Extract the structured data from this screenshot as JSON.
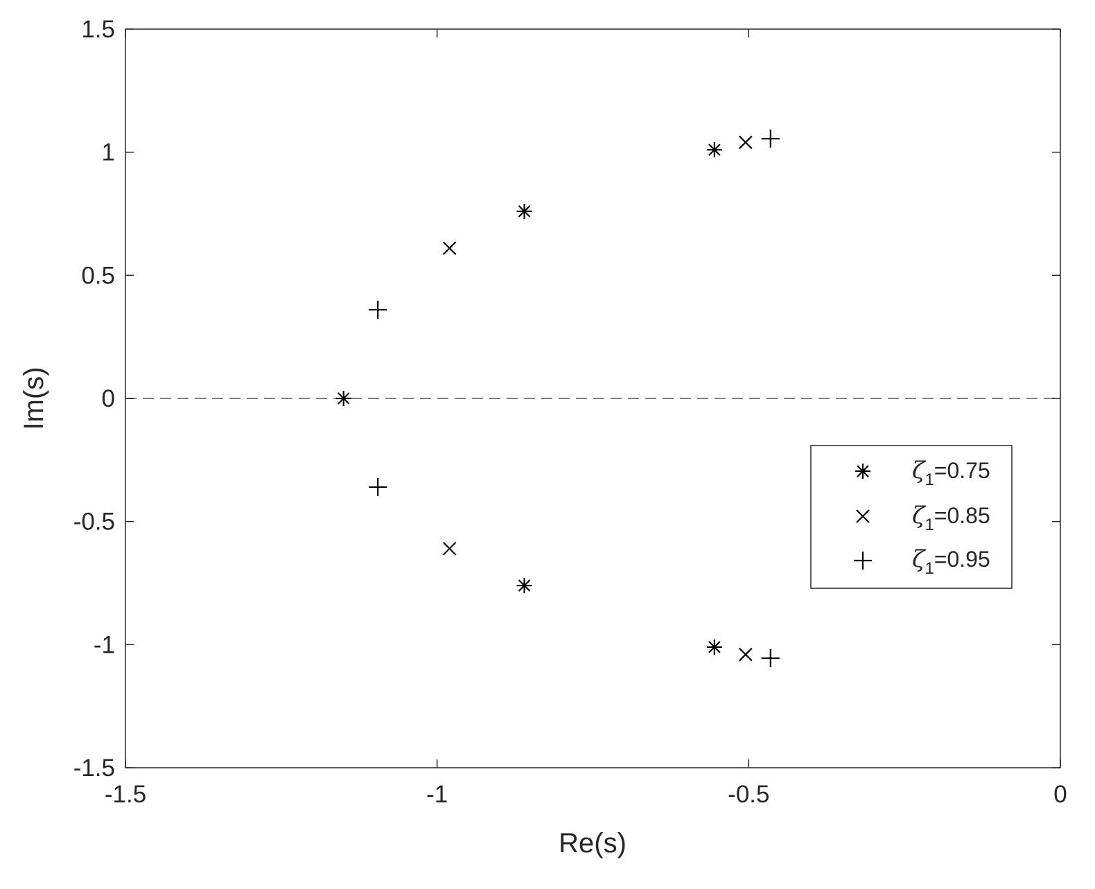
{
  "chart_data": {
    "type": "scatter",
    "xlabel": "Re(s)",
    "ylabel": "Im(s)",
    "xlim": [
      -1.5,
      0
    ],
    "ylim": [
      -1.5,
      1.5
    ],
    "xticks": [
      "-1.5",
      "-1",
      "-0.5",
      "0"
    ],
    "yticks": [
      "-1.5",
      "-1",
      "-0.5",
      "0",
      "0.5",
      "1",
      "1.5"
    ],
    "grid": false,
    "reference_line": {
      "y": 0,
      "style": "dashed"
    },
    "legend_position": "right",
    "series": [
      {
        "name": "ζ1=0.75",
        "symbol": "ζ",
        "subscript": "1",
        "value": "=0.75",
        "marker": "asterisk",
        "points": [
          [
            -1.15,
            0.0
          ],
          [
            -0.86,
            0.76
          ],
          [
            -0.86,
            -0.76
          ],
          [
            -0.555,
            1.01
          ],
          [
            -0.555,
            -1.01
          ]
        ]
      },
      {
        "name": "ζ1=0.85",
        "symbol": "ζ",
        "subscript": "1",
        "value": "=0.85",
        "marker": "x",
        "points": [
          [
            -0.98,
            0.61
          ],
          [
            -0.98,
            -0.61
          ],
          [
            -0.505,
            1.04
          ],
          [
            -0.505,
            -1.04
          ]
        ]
      },
      {
        "name": "ζ1=0.95",
        "symbol": "ζ",
        "subscript": "1",
        "value": "=0.95",
        "marker": "plus",
        "points": [
          [
            -1.095,
            0.36
          ],
          [
            -1.095,
            -0.36
          ],
          [
            -0.465,
            1.055
          ],
          [
            -0.465,
            -1.055
          ]
        ]
      }
    ],
    "colors": {
      "axis": "#262626",
      "marker": "#000000",
      "reference": "#7f7f7f"
    }
  }
}
